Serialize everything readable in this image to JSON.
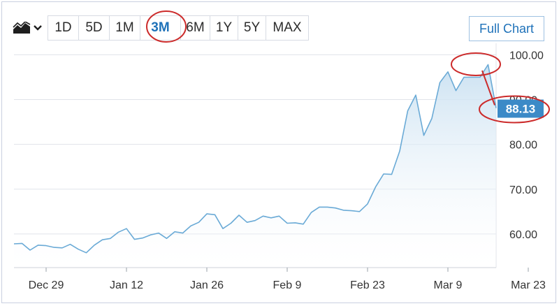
{
  "toolbar": {
    "chart_type_icon": "area-chart-icon",
    "dropdown_icon": "chevron-down-icon",
    "ranges": [
      "1D",
      "5D",
      "1M",
      "3M",
      "6M",
      "1Y",
      "5Y",
      "MAX"
    ],
    "active_range": "3M",
    "full_chart_label": "Full Chart"
  },
  "colors": {
    "line": "#6aaad6",
    "fill_top": "#c9e0f1",
    "accent": "#1f72b9",
    "price_tag": "#3c8ac7",
    "annotation": "#cc2b2b",
    "grid": "#e0e3ea"
  },
  "price_tag": "88.13",
  "chart_data": {
    "type": "area",
    "title": "",
    "xlabel": "",
    "ylabel": "",
    "ylim": [
      52.5,
      101
    ],
    "yticks": [
      {
        "value": 100,
        "label": "100.00"
      },
      {
        "value": 90,
        "label": "90.00"
      },
      {
        "value": 80,
        "label": "80.00"
      },
      {
        "value": 70,
        "label": "70.00"
      },
      {
        "value": 60,
        "label": "60.00"
      }
    ],
    "xticks": [
      {
        "index": 4,
        "label": "Dec 29"
      },
      {
        "index": 14,
        "label": "Jan 12"
      },
      {
        "index": 24,
        "label": "Jan 26"
      },
      {
        "index": 34,
        "label": "Feb 9"
      },
      {
        "index": 44,
        "label": "Feb 23"
      },
      {
        "index": 54,
        "label": "Mar 9"
      },
      {
        "index": 64,
        "label": "Mar 23"
      }
    ],
    "grid": true,
    "series": [
      {
        "values": [
          57.8,
          57.9,
          56.4,
          57.5,
          57.4,
          57.0,
          56.9,
          57.7,
          56.6,
          55.8,
          57.5,
          58.7,
          59.0,
          60.4,
          61.2,
          58.8,
          59.1,
          59.8,
          60.2,
          59.0,
          60.5,
          60.2,
          61.8,
          62.6,
          64.5,
          64.3,
          61.2,
          62.4,
          64.2,
          62.6,
          63.0,
          64.0,
          63.6,
          64.0,
          62.4,
          62.5,
          62.2,
          64.8,
          66.0,
          66.0,
          65.8,
          65.3,
          65.2,
          65.0,
          66.7,
          70.5,
          73.4,
          73.3,
          78.5,
          87.5,
          91.0,
          82.0,
          85.8,
          93.8,
          96.2,
          92.0,
          95.0,
          95.0,
          95.0,
          97.8,
          88.1
        ]
      }
    ],
    "last_value": 88.13
  }
}
